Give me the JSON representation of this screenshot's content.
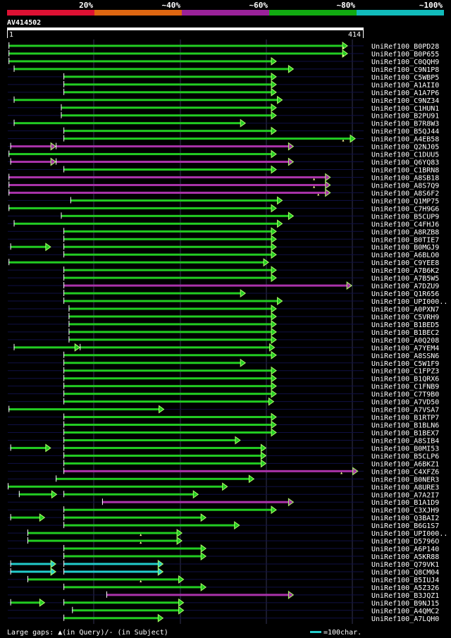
{
  "header": {
    "bands": [
      {
        "label": "20%",
        "color": "#dd1133"
      },
      {
        "label": "~40%",
        "color": "#dd6611"
      },
      {
        "label": "~60%",
        "color": "#992299"
      },
      {
        "label": "~80%",
        "color": "#11aa11"
      },
      {
        "label": "~100%",
        "color": "#11bbbb"
      }
    ]
  },
  "query": {
    "name": "AV414502",
    "start": "1",
    "end": "414",
    "length": 414
  },
  "colors": {
    "green": "#22cc22",
    "purple": "#aa33aa",
    "cyan": "#22cccc",
    "arrowhead": "#aaff66",
    "gap": "#ffff99",
    "grid": "#333355",
    "row_line": "#101044"
  },
  "footer": {
    "gaps_text": "Large gaps: ▲(in Query)/- (in Subject)",
    "scale_text": "=100char."
  },
  "hits": [
    {
      "name": "UniRef100_B0PD28",
      "color": "green",
      "segs": [
        [
          1,
          396
        ]
      ],
      "gaps": [
        391
      ]
    },
    {
      "name": "UniRef100_B0P655",
      "color": "green",
      "segs": [
        [
          1,
          396
        ]
      ],
      "gaps": [
        391
      ]
    },
    {
      "name": "UniRef100_C0QQH9",
      "color": "green",
      "segs": [
        [
          1,
          313
        ]
      ],
      "gaps": []
    },
    {
      "name": "UniRef100_C9N1P8",
      "color": "green",
      "segs": [
        [
          7,
          333
        ]
      ],
      "gaps": []
    },
    {
      "name": "UniRef100_C5WBP5",
      "color": "green",
      "segs": [
        [
          65,
          313
        ]
      ],
      "gaps": []
    },
    {
      "name": "UniRef100_A1AII0",
      "color": "green",
      "segs": [
        [
          65,
          313
        ]
      ],
      "gaps": []
    },
    {
      "name": "UniRef100_A1A7P6",
      "color": "green",
      "segs": [
        [
          65,
          313
        ]
      ],
      "gaps": []
    },
    {
      "name": "UniRef100_C9NZ34",
      "color": "green",
      "segs": [
        [
          7,
          320
        ]
      ],
      "gaps": []
    },
    {
      "name": "UniRef100_C1HUN1",
      "color": "green",
      "segs": [
        [
          62,
          313
        ]
      ],
      "gaps": []
    },
    {
      "name": "UniRef100_B2PU91",
      "color": "green",
      "segs": [
        [
          62,
          313
        ]
      ],
      "gaps": []
    },
    {
      "name": "UniRef100_B7R8W3",
      "color": "green",
      "segs": [
        [
          7,
          277
        ]
      ],
      "gaps": []
    },
    {
      "name": "UniRef100_B5QJ44",
      "color": "green",
      "segs": [
        [
          65,
          313
        ]
      ],
      "gaps": []
    },
    {
      "name": "UniRef100_A4EB58",
      "color": "green",
      "segs": [
        [
          65,
          405
        ]
      ],
      "gaps": [
        391
      ]
    },
    {
      "name": "UniRef100_Q2NJ05",
      "color": "purple",
      "segs": [
        [
          3,
          56
        ],
        [
          56,
          333
        ]
      ],
      "gaps": []
    },
    {
      "name": "UniRef100_C1DUU5",
      "color": "green",
      "segs": [
        [
          1,
          313
        ]
      ],
      "gaps": []
    },
    {
      "name": "UniRef100_Q6YQ83",
      "color": "purple",
      "segs": [
        [
          3,
          56
        ],
        [
          56,
          333
        ]
      ],
      "gaps": []
    },
    {
      "name": "UniRef100_C1BRN8",
      "color": "green",
      "segs": [
        [
          65,
          313
        ]
      ],
      "gaps": []
    },
    {
      "name": "UniRef100_A8SB18",
      "color": "purple",
      "segs": [
        [
          1,
          376
        ]
      ],
      "gaps": [
        357
      ]
    },
    {
      "name": "UniRef100_A8S7Q9",
      "color": "purple",
      "segs": [
        [
          1,
          376
        ]
      ],
      "gaps": [
        357
      ]
    },
    {
      "name": "UniRef100_A8S6F2",
      "color": "purple",
      "segs": [
        [
          1,
          376
        ]
      ],
      "gaps": [
        362
      ]
    },
    {
      "name": "UniRef100_Q1MP75",
      "color": "green",
      "segs": [
        [
          73,
          320
        ]
      ],
      "gaps": []
    },
    {
      "name": "UniRef100_C7H9G6",
      "color": "green",
      "segs": [
        [
          1,
          313
        ]
      ],
      "gaps": []
    },
    {
      "name": "UniRef100_B5CUP9",
      "color": "green",
      "segs": [
        [
          62,
          333
        ]
      ],
      "gaps": []
    },
    {
      "name": "UniRef100_C4FHJ6",
      "color": "green",
      "segs": [
        [
          7,
          320
        ]
      ],
      "gaps": []
    },
    {
      "name": "UniRef100_A8RZB8",
      "color": "green",
      "segs": [
        [
          65,
          313
        ]
      ],
      "gaps": []
    },
    {
      "name": "UniRef100_B0TIE7",
      "color": "green",
      "segs": [
        [
          65,
          313
        ]
      ],
      "gaps": []
    },
    {
      "name": "UniRef100_B0MGJ9",
      "color": "green",
      "segs": [
        [
          3,
          50
        ],
        [
          65,
          313
        ]
      ],
      "gaps": []
    },
    {
      "name": "UniRef100_A6BLO0",
      "color": "green",
      "segs": [
        [
          65,
          313
        ]
      ],
      "gaps": []
    },
    {
      "name": "UniRef100_C9YEE8",
      "color": "green",
      "segs": [
        [
          1,
          304
        ]
      ],
      "gaps": []
    },
    {
      "name": "UniRef100_A7B6K2",
      "color": "green",
      "segs": [
        [
          65,
          313
        ]
      ],
      "gaps": []
    },
    {
      "name": "UniRef100_A7B5W5",
      "color": "green",
      "segs": [
        [
          65,
          313
        ]
      ],
      "gaps": []
    },
    {
      "name": "UniRef100_A7DZU9",
      "color": "purple",
      "segs": [
        [
          65,
          401
        ]
      ],
      "gaps": []
    },
    {
      "name": "UniRef100_Q1R656",
      "color": "green",
      "segs": [
        [
          65,
          277
        ]
      ],
      "gaps": []
    },
    {
      "name": "UniRef100_UPI000..",
      "color": "green",
      "segs": [
        [
          65,
          320
        ]
      ],
      "gaps": []
    },
    {
      "name": "UniRef100_A0PXN7",
      "color": "green",
      "segs": [
        [
          71,
          313
        ]
      ],
      "gaps": []
    },
    {
      "name": "UniRef100_C5VRH9",
      "color": "green",
      "segs": [
        [
          71,
          313
        ]
      ],
      "gaps": []
    },
    {
      "name": "UniRef100_B1BED5",
      "color": "green",
      "segs": [
        [
          71,
          313
        ]
      ],
      "gaps": []
    },
    {
      "name": "UniRef100_B1BEC2",
      "color": "green",
      "segs": [
        [
          71,
          313
        ]
      ],
      "gaps": []
    },
    {
      "name": "UniRef100_A0Q208",
      "color": "green",
      "segs": [
        [
          71,
          313
        ]
      ],
      "gaps": []
    },
    {
      "name": "UniRef100_A7YEM4",
      "color": "green",
      "segs": [
        [
          7,
          84
        ],
        [
          84,
          311
        ]
      ],
      "gaps": []
    },
    {
      "name": "UniRef100_A8SSN6",
      "color": "green",
      "segs": [
        [
          65,
          313
        ]
      ],
      "gaps": []
    },
    {
      "name": "UniRef100_C5W1F9",
      "color": "green",
      "segs": [
        [
          65,
          277
        ]
      ],
      "gaps": []
    },
    {
      "name": "UniRef100_C1FPZ3",
      "color": "green",
      "segs": [
        [
          65,
          313
        ]
      ],
      "gaps": []
    },
    {
      "name": "UniRef100_B1QRX6",
      "color": "green",
      "segs": [
        [
          65,
          313
        ]
      ],
      "gaps": []
    },
    {
      "name": "UniRef100_C1FNB9",
      "color": "green",
      "segs": [
        [
          65,
          313
        ]
      ],
      "gaps": []
    },
    {
      "name": "UniRef100_C7T9B0",
      "color": "green",
      "segs": [
        [
          65,
          313
        ]
      ],
      "gaps": []
    },
    {
      "name": "UniRef100_A7VD50",
      "color": "green",
      "segs": [
        [
          65,
          310
        ]
      ],
      "gaps": []
    },
    {
      "name": "UniRef100_A7VSA7",
      "color": "green",
      "segs": [
        [
          1,
          182
        ]
      ],
      "gaps": []
    },
    {
      "name": "UniRef100_B1RTP7",
      "color": "green",
      "segs": [
        [
          65,
          313
        ]
      ],
      "gaps": []
    },
    {
      "name": "UniRef100_B1BLN6",
      "color": "green",
      "segs": [
        [
          65,
          313
        ]
      ],
      "gaps": []
    },
    {
      "name": "UniRef100_B1BEX7",
      "color": "green",
      "segs": [
        [
          65,
          313
        ]
      ],
      "gaps": []
    },
    {
      "name": "UniRef100_A8SIB4",
      "color": "green",
      "segs": [
        [
          65,
          271
        ]
      ],
      "gaps": []
    },
    {
      "name": "UniRef100_B0MI53",
      "color": "green",
      "segs": [
        [
          3,
          50
        ],
        [
          65,
          301
        ]
      ],
      "gaps": []
    },
    {
      "name": "UniRef100_B5CLP6",
      "color": "green",
      "segs": [
        [
          65,
          301
        ]
      ],
      "gaps": []
    },
    {
      "name": "UniRef100_A6BKZ1",
      "color": "green",
      "segs": [
        [
          65,
          301
        ]
      ],
      "gaps": []
    },
    {
      "name": "UniRef100_C4XFZ6",
      "color": "purple",
      "segs": [
        [
          65,
          408
        ]
      ],
      "gaps": [
        389
      ]
    },
    {
      "name": "UniRef100_B0NER3",
      "color": "green",
      "segs": [
        [
          56,
          287
        ]
      ],
      "gaps": []
    },
    {
      "name": "UniRef100_A8URE3",
      "color": "green",
      "segs": [
        [
          0,
          256
        ]
      ],
      "gaps": []
    },
    {
      "name": "UniRef100_A7A2I7",
      "color": "green",
      "segs": [
        [
          13,
          57
        ],
        [
          65,
          222
        ]
      ],
      "gaps": []
    },
    {
      "name": "UniRef100_B1A1D9",
      "color": "purple",
      "segs": [
        [
          110,
          333
        ]
      ],
      "gaps": []
    },
    {
      "name": "UniRef100_C3XJH9",
      "color": "green",
      "segs": [
        [
          65,
          313
        ]
      ],
      "gaps": []
    },
    {
      "name": "UniRef100_Q3BAI2",
      "color": "green",
      "segs": [
        [
          3,
          43
        ],
        [
          65,
          231
        ]
      ],
      "gaps": []
    },
    {
      "name": "UniRef100_B6G1S7",
      "color": "green",
      "segs": [
        [
          65,
          270
        ]
      ],
      "gaps": []
    },
    {
      "name": "UniRef100_UPI000..",
      "color": "green",
      "segs": [
        [
          23,
          203
        ]
      ],
      "gaps": [
        155
      ]
    },
    {
      "name": "UniRef100_D5796O",
      "color": "green",
      "segs": [
        [
          23,
          203
        ]
      ],
      "gaps": [
        155
      ]
    },
    {
      "name": "UniRef100_A6P140",
      "color": "green",
      "segs": [
        [
          65,
          231
        ]
      ],
      "gaps": []
    },
    {
      "name": "UniRef100_A5KR88",
      "color": "green",
      "segs": [
        [
          65,
          231
        ]
      ],
      "gaps": []
    },
    {
      "name": "UniRef100_Q79VK1",
      "color": "cyan",
      "segs": [
        [
          3,
          56
        ],
        [
          65,
          181
        ]
      ],
      "gaps": []
    },
    {
      "name": "UniRef100_Q8CM04",
      "color": "cyan",
      "segs": [
        [
          3,
          56
        ],
        [
          65,
          181
        ]
      ],
      "gaps": []
    },
    {
      "name": "UniRef100_B5IUJ4",
      "color": "green",
      "segs": [
        [
          23,
          205
        ]
      ],
      "gaps": [
        155
      ]
    },
    {
      "name": "UniRef100_A5Z326",
      "color": "green",
      "segs": [
        [
          65,
          231
        ]
      ],
      "gaps": []
    },
    {
      "name": "UniRef100_B3JQZ1",
      "color": "purple",
      "segs": [
        [
          115,
          333
        ]
      ],
      "gaps": []
    },
    {
      "name": "UniRef100_B9NJ15",
      "color": "green",
      "segs": [
        [
          3,
          43
        ],
        [
          65,
          205
        ]
      ],
      "gaps": []
    },
    {
      "name": "UniRef100_A4QMC2",
      "color": "green",
      "segs": [
        [
          75,
          205
        ]
      ],
      "gaps": []
    },
    {
      "name": "UniRef100_A7LQH0",
      "color": "green",
      "segs": [
        [
          65,
          181
        ]
      ],
      "gaps": []
    }
  ]
}
